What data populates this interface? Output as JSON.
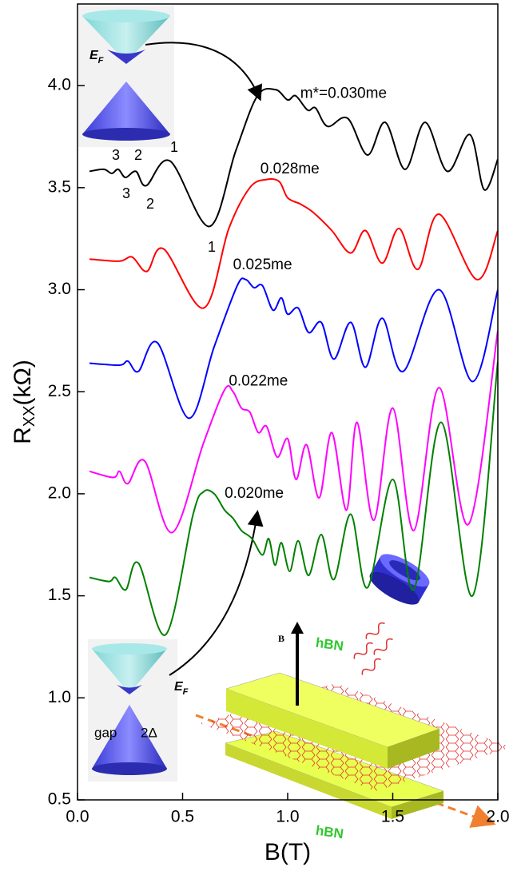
{
  "chart_data": {
    "type": "line",
    "xlabel": "B(T)",
    "ylabel": [
      "R",
      "XX",
      "(kΩ)"
    ],
    "xlim": [
      0,
      2
    ],
    "ylim": [
      0.5,
      4.4
    ],
    "xticks": [
      {
        "value": 0,
        "label": "0.0"
      },
      0.5,
      {
        "value": 1,
        "label": "1.0"
      },
      1.5,
      {
        "value": 2,
        "label": "2.0"
      }
    ],
    "yticks": [
      0.5,
      {
        "value": 1,
        "label": "1.0"
      },
      1.5,
      {
        "value": 2,
        "label": "2.0"
      },
      2.5,
      {
        "value": 3,
        "label": "3.0"
      },
      3.5,
      {
        "value": 4,
        "label": "4.0"
      }
    ],
    "series": [
      {
        "name": "m*=0.030me",
        "color": "#000000",
        "x": [
          0.057,
          0.125,
          0.163,
          0.194,
          0.228,
          0.278,
          0.327,
          0.441,
          0.627,
          0.753,
          0.856,
          0.943,
          1.0,
          1.038,
          1.095,
          1.133,
          1.19,
          1.285,
          1.38,
          1.464,
          1.559,
          1.654,
          1.76,
          1.867,
          1.935,
          2.0
        ],
        "values": [
          3.58,
          3.59,
          3.57,
          3.59,
          3.55,
          3.58,
          3.51,
          3.63,
          3.31,
          3.68,
          3.95,
          3.98,
          3.93,
          3.95,
          3.88,
          3.89,
          3.8,
          3.84,
          3.66,
          3.82,
          3.59,
          3.82,
          3.58,
          3.76,
          3.49,
          3.64
        ]
      },
      {
        "name": "0.028me",
        "color": "#ff0000",
        "x": [
          0.057,
          0.2,
          0.26,
          0.33,
          0.41,
          0.6,
          0.72,
          0.82,
          0.9,
          0.96,
          1.0,
          1.06,
          1.12,
          1.21,
          1.3,
          1.37,
          1.45,
          1.53,
          1.62,
          1.72,
          1.9,
          2.0
        ],
        "values": [
          3.15,
          3.14,
          3.16,
          3.09,
          3.2,
          2.91,
          3.3,
          3.5,
          3.54,
          3.53,
          3.45,
          3.42,
          3.38,
          3.29,
          3.18,
          3.29,
          3.13,
          3.3,
          3.1,
          3.37,
          3.05,
          3.29
        ]
      },
      {
        "name": "0.025me",
        "color": "#0000ff",
        "x": [
          0.057,
          0.2,
          0.24,
          0.29,
          0.38,
          0.53,
          0.65,
          0.76,
          0.8,
          0.84,
          0.88,
          0.93,
          0.97,
          1.0,
          1.05,
          1.1,
          1.16,
          1.22,
          1.3,
          1.37,
          1.45,
          1.55,
          1.72,
          1.88,
          2.0
        ],
        "values": [
          2.64,
          2.63,
          2.65,
          2.6,
          2.74,
          2.37,
          2.72,
          3.02,
          3.05,
          3.01,
          3.02,
          2.9,
          2.96,
          2.88,
          2.91,
          2.79,
          2.84,
          2.66,
          2.84,
          2.62,
          2.86,
          2.6,
          3.0,
          2.55,
          3.0
        ]
      },
      {
        "name": "0.022me",
        "color": "#ff00ff",
        "x": [
          0.057,
          0.17,
          0.2,
          0.24,
          0.32,
          0.45,
          0.6,
          0.7,
          0.74,
          0.78,
          0.82,
          0.86,
          0.9,
          0.95,
          1.0,
          1.04,
          1.09,
          1.15,
          1.21,
          1.28,
          1.33,
          1.41,
          1.5,
          1.6,
          1.72,
          1.86,
          2.0
        ],
        "values": [
          2.11,
          2.08,
          2.11,
          2.05,
          2.16,
          1.81,
          2.25,
          2.51,
          2.5,
          2.42,
          2.4,
          2.3,
          2.33,
          2.18,
          2.27,
          2.07,
          2.24,
          1.98,
          2.3,
          1.92,
          2.35,
          1.87,
          2.42,
          1.82,
          2.52,
          1.85,
          2.8
        ]
      },
      {
        "name": "0.020me",
        "color": "#008000",
        "x": [
          0.057,
          0.15,
          0.18,
          0.23,
          0.29,
          0.42,
          0.55,
          0.6,
          0.65,
          0.7,
          0.74,
          0.78,
          0.83,
          0.88,
          0.91,
          0.94,
          0.97,
          1.01,
          1.05,
          1.1,
          1.16,
          1.22,
          1.3,
          1.38,
          1.5,
          1.6,
          1.73,
          1.88,
          2.0
        ],
        "values": [
          1.59,
          1.57,
          1.59,
          1.53,
          1.66,
          1.31,
          1.9,
          2.01,
          2.0,
          1.92,
          1.88,
          1.82,
          1.78,
          1.7,
          1.78,
          1.65,
          1.76,
          1.62,
          1.77,
          1.6,
          1.8,
          1.58,
          1.9,
          1.54,
          2.07,
          1.53,
          2.35,
          1.5,
          2.65
        ]
      }
    ],
    "annotations": [
      "3",
      "2",
      "1",
      "3",
      "2",
      "1"
    ],
    "inset_top": {
      "ef": [
        "E",
        "F"
      ]
    },
    "inset_bottom": {
      "ef": [
        "E",
        "F"
      ],
      "gap": "gap",
      "delta": "2Δ"
    },
    "device": {
      "field": "B",
      "top_layer": "hBN",
      "bottom_layer": "hBN"
    }
  }
}
